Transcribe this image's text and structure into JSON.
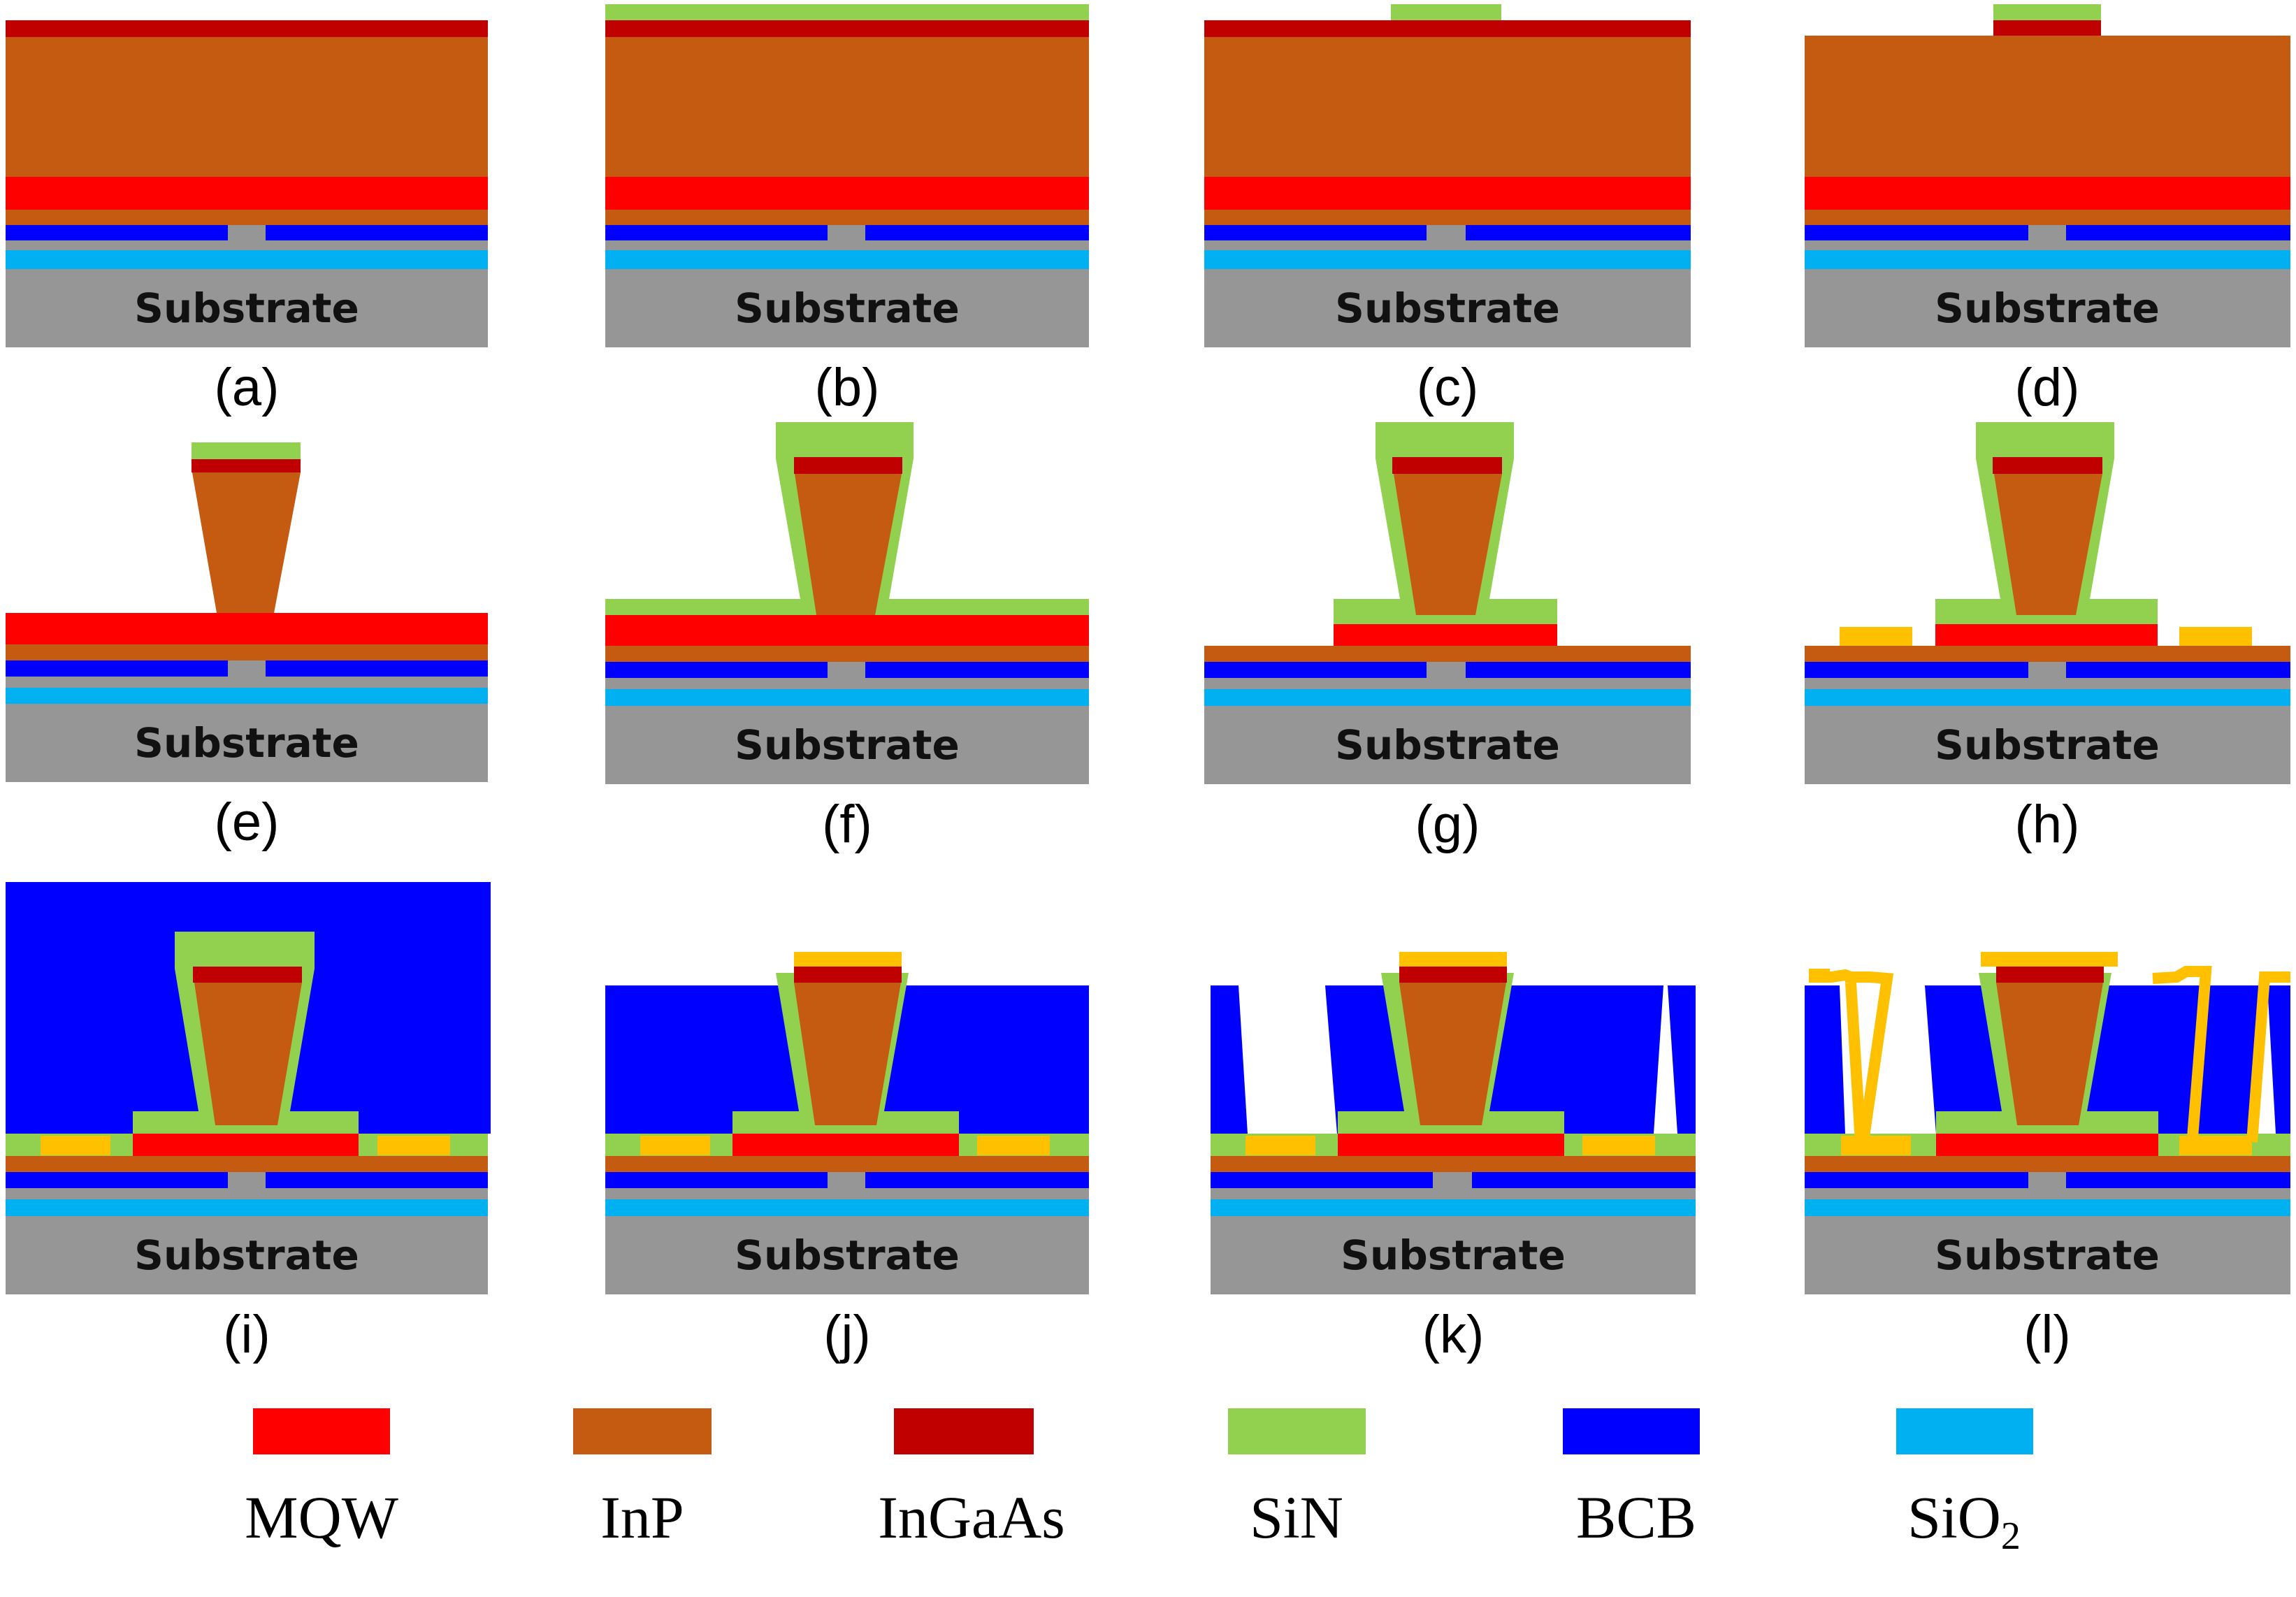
{
  "materials": {
    "MQW": {
      "label": "MQW",
      "color": "#ff0000"
    },
    "InP": {
      "label": "InP",
      "color": "#c55a11"
    },
    "InGaAs": {
      "label": "InGaAs",
      "color": "#c00000"
    },
    "SiN": {
      "label": "SiN",
      "color": "#92d050"
    },
    "BCB": {
      "label": "BCB",
      "color": "#0000ff"
    },
    "SiO2": {
      "label": "SiO",
      "label_sub": "2",
      "color": "#00b0f0"
    },
    "Substrate": {
      "color": "#969696"
    },
    "Metal": {
      "color": "#ffc000"
    }
  },
  "substrate_label": "Substrate",
  "steps": [
    {
      "id": "a",
      "caption": "(a)"
    },
    {
      "id": "b",
      "caption": "(b)"
    },
    {
      "id": "c",
      "caption": "(c)"
    },
    {
      "id": "d",
      "caption": "(d)"
    },
    {
      "id": "e",
      "caption": "(e)"
    },
    {
      "id": "f",
      "caption": "(f)"
    },
    {
      "id": "g",
      "caption": "(g)"
    },
    {
      "id": "h",
      "caption": "(h)"
    },
    {
      "id": "i",
      "caption": "(i)"
    },
    {
      "id": "j",
      "caption": "(j)"
    },
    {
      "id": "k",
      "caption": "(k)"
    },
    {
      "id": "l",
      "caption": "(l)"
    }
  ],
  "legend": [
    "MQW",
    "InP",
    "InGaAs",
    "SiN",
    "BCB",
    "SiO2"
  ]
}
